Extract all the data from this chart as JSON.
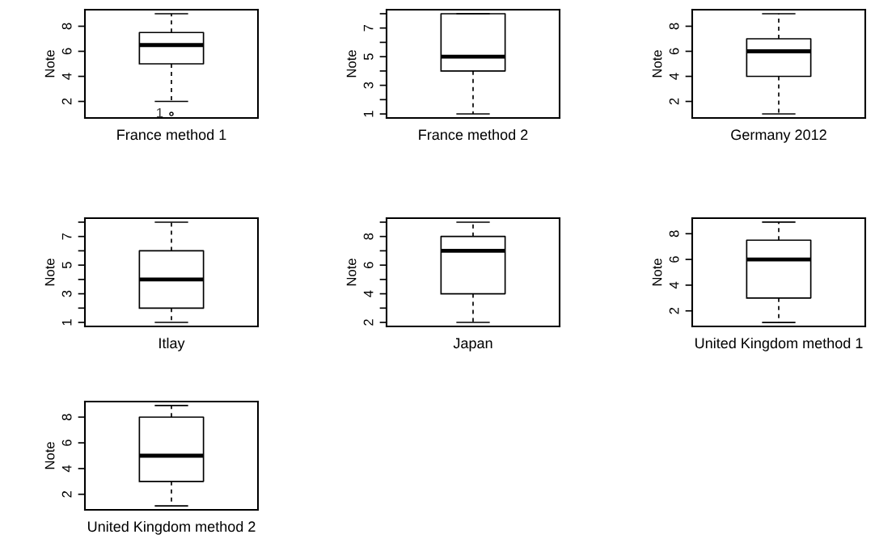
{
  "chart_data": [
    {
      "type": "box",
      "categories": [
        null
      ],
      "xlabel": "France method 1",
      "ylabel": "Note",
      "ylim": [
        0.68,
        9.32
      ],
      "yticks": [
        2,
        4,
        6,
        8
      ],
      "tick_labels": "y",
      "boxes": [
        {
          "low": 2,
          "q1": 5,
          "median": 6.5,
          "q3": 7.5,
          "high": 9,
          "outliers": [
            1
          ]
        }
      ],
      "annotations": [
        "1"
      ]
    },
    {
      "type": "box",
      "categories": [
        null
      ],
      "xlabel": "France method 2",
      "ylabel": "Note",
      "ylim": [
        0.72,
        8.28
      ],
      "yticks": [
        1,
        {
          "value": 2,
          "label": null
        },
        3,
        {
          "value": 4,
          "label": null
        },
        5,
        {
          "value": 6,
          "label": null
        },
        7,
        {
          "value": 8,
          "label": null
        }
      ],
      "tick_labels": "y",
      "boxes": [
        {
          "low": 1,
          "q1": 4,
          "median": 5,
          "q3": 8,
          "high": 8
        }
      ]
    },
    {
      "type": "box",
      "categories": [
        null
      ],
      "xlabel": "Germany 2012",
      "ylabel": "Note",
      "ylim": [
        0.68,
        9.32
      ],
      "yticks": [
        2,
        4,
        6,
        8
      ],
      "tick_labels": "y",
      "boxes": [
        {
          "low": 1,
          "q1": 4,
          "median": 6,
          "q3": 7,
          "high": 9
        }
      ]
    },
    {
      "type": "box",
      "categories": [
        null
      ],
      "xlabel": "Itlay",
      "ylabel": "Note",
      "ylim": [
        0.72,
        8.28
      ],
      "yticks": [
        1,
        {
          "value": 2,
          "label": null
        },
        3,
        {
          "value": 4,
          "label": null
        },
        5,
        {
          "value": 6,
          "label": null
        },
        7,
        {
          "value": 8,
          "label": null
        }
      ],
      "tick_labels": "y",
      "boxes": [
        {
          "low": 1,
          "q1": 2,
          "median": 4,
          "q3": 6,
          "high": 8
        }
      ]
    },
    {
      "type": "box",
      "categories": [
        null
      ],
      "xlabel": "Japan",
      "ylabel": "Note",
      "ylim": [
        1.72,
        9.28
      ],
      "yticks": [
        2,
        {
          "value": 3,
          "label": null
        },
        4,
        {
          "value": 5,
          "label": null
        },
        6,
        {
          "value": 7,
          "label": null
        },
        8,
        {
          "value": 9,
          "label": null
        }
      ],
      "tick_labels": "y",
      "boxes": [
        {
          "low": 2,
          "q1": 4,
          "median": 7,
          "q3": 8,
          "high": 9
        }
      ]
    },
    {
      "type": "box",
      "categories": [
        null
      ],
      "xlabel": "United Kingdom method 1",
      "ylabel": "Note",
      "ylim": [
        0.79,
        9.21
      ],
      "yticks": [
        2,
        4,
        6,
        8
      ],
      "tick_labels": "y",
      "boxes": [
        {
          "low": 1.1,
          "q1": 3,
          "median": 6,
          "q3": 7.5,
          "high": 8.9
        }
      ]
    },
    {
      "type": "box",
      "categories": [
        null
      ],
      "xlabel": "United Kingdom method 2",
      "ylabel": "Note",
      "ylim": [
        0.79,
        9.21
      ],
      "yticks": [
        2,
        4,
        6,
        8
      ],
      "tick_labels": "y",
      "boxes": [
        {
          "low": 1.1,
          "q1": 3,
          "median": 5,
          "q3": 8,
          "high": 8.9
        }
      ]
    }
  ]
}
